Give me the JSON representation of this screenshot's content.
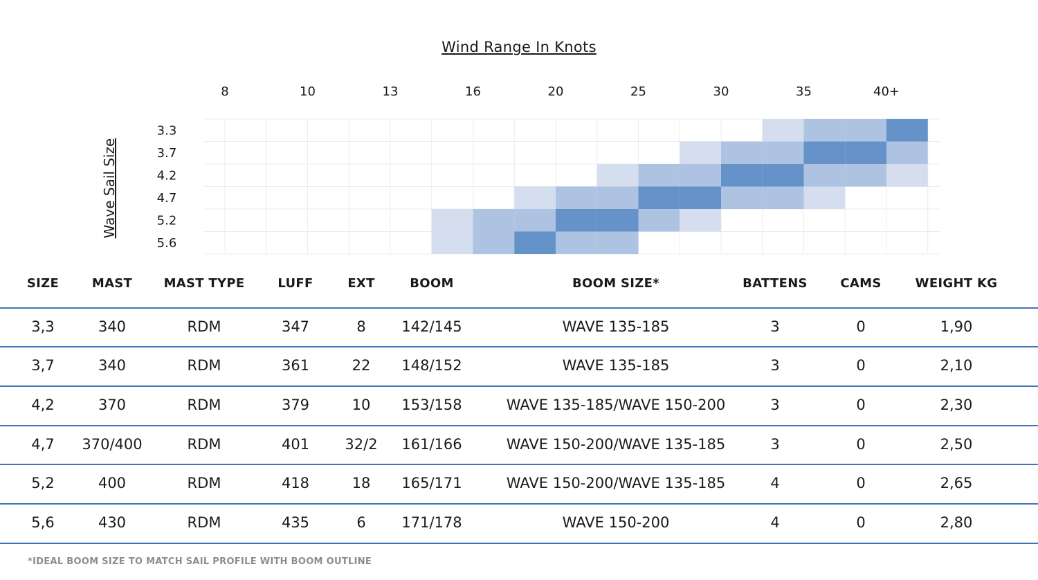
{
  "chart_data": {
    "type": "heatmap",
    "title": "Wind Range In Knots",
    "ylabel": "Wave Sail Size",
    "x_ticks": [
      "8",
      "10",
      "13",
      "16",
      "20",
      "25",
      "30",
      "35",
      "40+"
    ],
    "y_labels": [
      "3.3",
      "3.7",
      "4.2",
      "4.7",
      "5.2",
      "5.6"
    ],
    "levels": [
      "none",
      "low",
      "medium",
      "optimal"
    ],
    "level_colors": [
      "#ffffff",
      "#d4deee",
      "#aec3e2",
      "#6592c8"
    ],
    "grid": true,
    "rows": [
      [
        0,
        0,
        0,
        0,
        0,
        0,
        0,
        0,
        0,
        0,
        0,
        0,
        0,
        1,
        2,
        2,
        3
      ],
      [
        0,
        0,
        0,
        0,
        0,
        0,
        0,
        0,
        0,
        0,
        0,
        1,
        2,
        2,
        3,
        3,
        2
      ],
      [
        0,
        0,
        0,
        0,
        0,
        0,
        0,
        0,
        0,
        1,
        2,
        2,
        3,
        3,
        2,
        2,
        1
      ],
      [
        0,
        0,
        0,
        0,
        0,
        0,
        0,
        1,
        2,
        2,
        3,
        3,
        2,
        2,
        1,
        0,
        0
      ],
      [
        0,
        0,
        0,
        0,
        0,
        1,
        2,
        2,
        3,
        3,
        2,
        1,
        0,
        0,
        0,
        0,
        0
      ],
      [
        0,
        0,
        0,
        0,
        0,
        1,
        2,
        3,
        2,
        2,
        0,
        0,
        0,
        0,
        0,
        0,
        0
      ]
    ]
  },
  "table": {
    "headers": [
      "SIZE",
      "MAST",
      "MAST TYPE",
      "LUFF",
      "EXT",
      "BOOM",
      "BOOM SIZE*",
      "BATTENS",
      "CAMS",
      "WEIGHT KG"
    ],
    "rows": [
      [
        "3,3",
        "340",
        "RDM",
        "347",
        "8",
        "142/145",
        "WAVE 135-185",
        "3",
        "0",
        "1,90"
      ],
      [
        "3,7",
        "340",
        "RDM",
        "361",
        "22",
        "148/152",
        "WAVE 135-185",
        "3",
        "0",
        "2,10"
      ],
      [
        "4,2",
        "370",
        "RDM",
        "379",
        "10",
        "153/158",
        "WAVE 135-185/WAVE 150-200",
        "3",
        "0",
        "2,30"
      ],
      [
        "4,7",
        "370/400",
        "RDM",
        "401",
        "32/2",
        "161/166",
        "WAVE 150-200/WAVE 135-185",
        "3",
        "0",
        "2,50"
      ],
      [
        "5,2",
        "400",
        "RDM",
        "418",
        "18",
        "165/171",
        "WAVE 150-200/WAVE 135-185",
        "4",
        "0",
        "2,65"
      ],
      [
        "5,6",
        "430",
        "RDM",
        "435",
        "6",
        "171/178",
        "WAVE 150-200",
        "4",
        "0",
        "2,80"
      ]
    ],
    "rule_color": "#3f74b9"
  },
  "footnote": "*IDEAL BOOM SIZE TO MATCH SAIL PROFILE WITH BOOM OUTLINE"
}
